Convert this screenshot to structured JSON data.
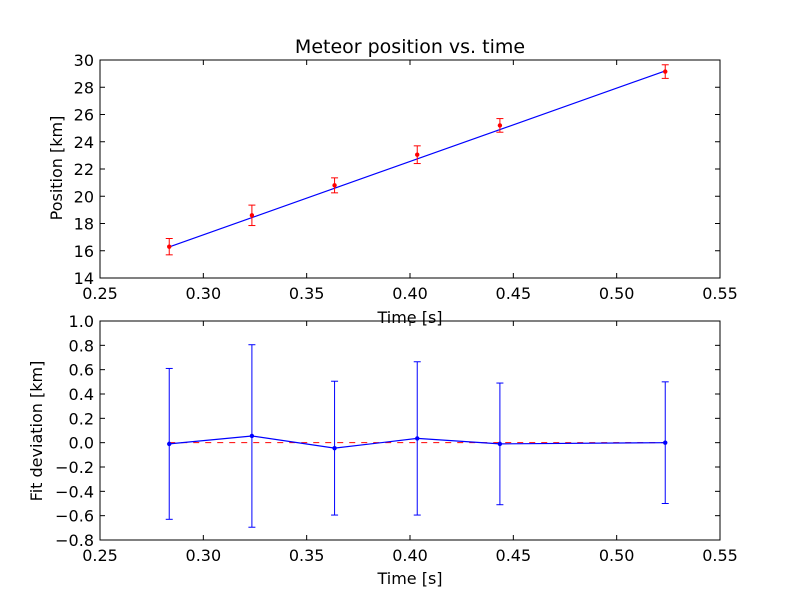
{
  "chart_data": [
    {
      "type": "line",
      "title": "Meteor position vs. time",
      "xlabel": "Time [s]",
      "ylabel": "Position [km]",
      "xlim": [
        0.25,
        0.55
      ],
      "ylim": [
        14,
        30
      ],
      "xticks": [
        0.25,
        0.3,
        0.35,
        0.4,
        0.45,
        0.5,
        0.55
      ],
      "xtick_labels": [
        "0.25",
        "0.30",
        "0.35",
        "0.40",
        "0.45",
        "0.50",
        "0.55"
      ],
      "yticks": [
        14,
        16,
        18,
        20,
        22,
        24,
        26,
        28,
        30
      ],
      "ytick_labels": [
        "14",
        "16",
        "18",
        "20",
        "22",
        "24",
        "26",
        "28",
        "30"
      ],
      "grid": false,
      "fit_line": {
        "color": "#0000ff",
        "x": [
          0.2835,
          0.5235
        ],
        "y": [
          16.28,
          29.2
        ]
      },
      "measurements": {
        "color": "#ff0000",
        "x": [
          0.2835,
          0.3235,
          0.3635,
          0.4035,
          0.4435,
          0.5235
        ],
        "y": [
          16.3,
          18.6,
          20.8,
          23.05,
          25.2,
          29.15
        ],
        "error": [
          0.6,
          0.75,
          0.55,
          0.65,
          0.5,
          0.5
        ]
      }
    },
    {
      "type": "line",
      "title": "",
      "xlabel": "Time [s]",
      "ylabel": "Fit deviation [km]",
      "xlim": [
        0.25,
        0.55
      ],
      "ylim": [
        -0.8,
        1.0
      ],
      "xticks": [
        0.25,
        0.3,
        0.35,
        0.4,
        0.45,
        0.5,
        0.55
      ],
      "xtick_labels": [
        "0.25",
        "0.30",
        "0.35",
        "0.40",
        "0.45",
        "0.50",
        "0.55"
      ],
      "yticks": [
        -0.8,
        -0.6,
        -0.4,
        -0.2,
        0.0,
        0.2,
        0.4,
        0.6,
        0.8,
        1.0
      ],
      "ytick_labels": [
        "−0.8",
        "−0.6",
        "−0.4",
        "−0.2",
        "0.0",
        "0.2",
        "0.4",
        "0.6",
        "0.8",
        "1.0"
      ],
      "grid": false,
      "zero_line": {
        "color": "#ff0000",
        "y": 0.0,
        "style": "dashed"
      },
      "residuals": {
        "color": "#0000ff",
        "x": [
          0.2835,
          0.3235,
          0.3635,
          0.4035,
          0.4435,
          0.5235
        ],
        "y": [
          -0.01,
          0.055,
          -0.045,
          0.035,
          -0.01,
          0.0
        ],
        "error": [
          0.62,
          0.75,
          0.55,
          0.63,
          0.5,
          0.5
        ]
      }
    }
  ]
}
